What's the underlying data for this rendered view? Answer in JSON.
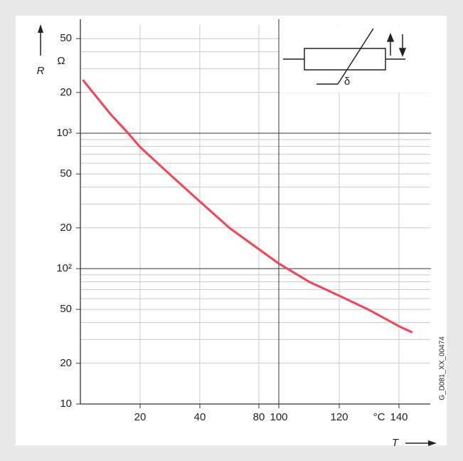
{
  "chart_data": {
    "type": "line",
    "y_label": "R",
    "y_unit": "Ω",
    "x_label": "T",
    "x_unit": "°C",
    "code": "G_D081_XX_00474",
    "symbol_label": "δ",
    "log_y": true,
    "grid": true,
    "x": [
      1,
      10,
      16,
      20,
      30,
      40,
      60,
      80,
      100,
      110,
      120,
      130,
      140,
      144
    ],
    "series": [
      {
        "color": "#e94b5f",
        "values": [
          2450,
          1390,
          1000,
          790,
          495,
          313,
          200,
          139,
          109,
          80,
          63,
          49.5,
          37.5,
          34
        ]
      }
    ],
    "xlim": [
      0,
      150
    ],
    "xticks": [
      20,
      40,
      80,
      100,
      120,
      140
    ],
    "ylim": [
      10,
      6310
    ],
    "yticks": [
      10,
      20,
      50,
      {
        "value": 100,
        "label": "10²"
      },
      {
        "value": 200,
        "label": "20"
      },
      {
        "value": 500,
        "label": "50"
      },
      {
        "value": 1000,
        "label": "10³"
      },
      {
        "value": 2000,
        "label": "20"
      },
      {
        "value": 5000,
        "label": "50"
      }
    ],
    "minor_yticks": [
      30,
      40,
      60,
      70,
      80,
      90,
      300,
      400,
      600,
      700,
      800,
      900,
      3000,
      4000
    ],
    "major_yticks": [
      100,
      1000
    ],
    "major_xticks": [
      100
    ]
  }
}
